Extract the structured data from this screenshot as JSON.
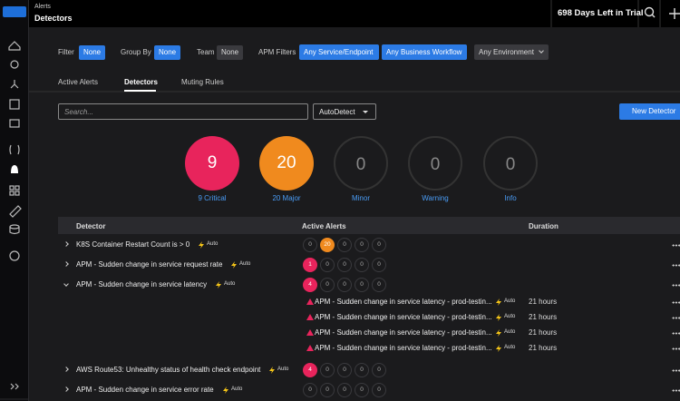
{
  "header": {
    "section": "Alerts",
    "title": "Detectors",
    "trial": "698 Days Left in Trial"
  },
  "filters": [
    {
      "label": "Filter",
      "value": "None"
    },
    {
      "label": "Group By",
      "value": "None"
    },
    {
      "label": "Team",
      "value": "None"
    }
  ],
  "apm_filters": {
    "label": "APM Filters",
    "values": [
      "Any Service/Endpoint",
      "Any Business Workflow",
      "Any Environment"
    ]
  },
  "tabs": [
    "Active Alerts",
    "Detectors",
    "Muting Rules"
  ],
  "active_tab": 1,
  "search": {
    "placeholder": "Search...",
    "dropdown": "AutoDetect",
    "button": "New Detector"
  },
  "summary": [
    {
      "count": 9,
      "label": "9 Critical",
      "color": "#e8245c"
    },
    {
      "count": 20,
      "label": "20 Major",
      "color": "#f08a1e"
    },
    {
      "count": 0,
      "label": "Minor",
      "color": "#e8c21e"
    },
    {
      "count": 0,
      "label": "Warning",
      "color": "#e8e01e"
    },
    {
      "count": 0,
      "label": "Info",
      "color": "#4a9cf5"
    }
  ],
  "table": {
    "columns": [
      "Detector",
      "Active Alerts",
      "Duration"
    ],
    "rows": [
      {
        "name": "K8S Container Restart Count is > 0",
        "tag": "Auto",
        "counts": [
          0,
          20,
          0,
          0,
          0
        ]
      },
      {
        "name": "APM - Sudden change in service request rate",
        "tag": "Auto",
        "counts": [
          1,
          0,
          0,
          0,
          0
        ]
      },
      {
        "name": "APM - Sudden change in service latency",
        "tag": "Auto",
        "counts": [
          4,
          0,
          0,
          0,
          0
        ],
        "expanded": true,
        "alerts": [
          {
            "name": "APM - Sudden change in service latency - prod-testin...",
            "tag": "Auto",
            "duration": "21 hours"
          },
          {
            "name": "APM - Sudden change in service latency - prod-testin...",
            "tag": "Auto",
            "duration": "21 hours"
          },
          {
            "name": "APM - Sudden change in service latency - prod-testin...",
            "tag": "Auto",
            "duration": "21 hours"
          },
          {
            "name": "APM - Sudden change in service latency - prod-testin...",
            "tag": "Auto",
            "duration": "21 hours"
          }
        ]
      },
      {
        "name": "AWS Route53: Unhealthy status of health check endpoint",
        "tag": "Auto",
        "counts": [
          4,
          0,
          0,
          0,
          0
        ]
      },
      {
        "name": "APM - Sudden change in service error rate",
        "tag": "Auto",
        "counts": [
          0,
          0,
          0,
          0,
          0
        ]
      }
    ]
  }
}
